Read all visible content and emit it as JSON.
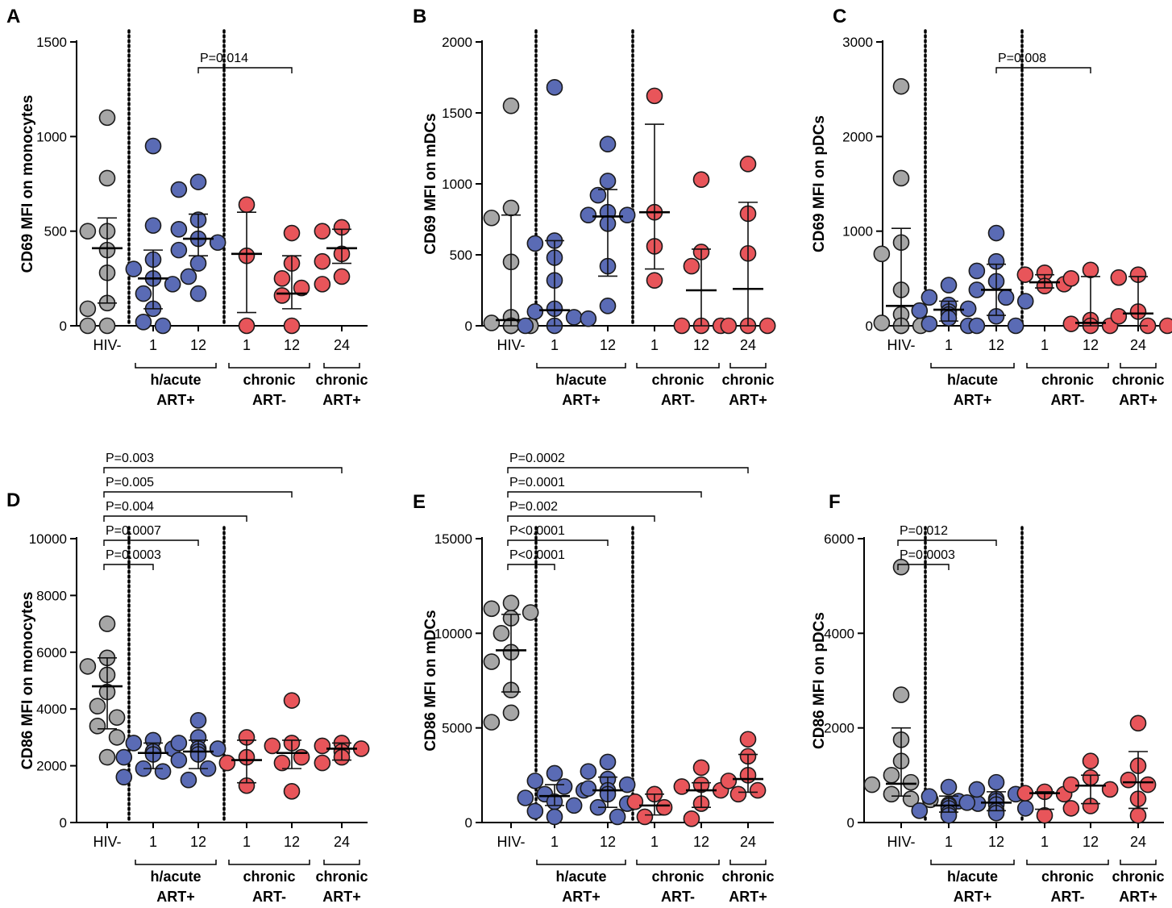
{
  "figure": {
    "colors": {
      "hiv_neg": "#a6a6a6",
      "acute": "#5a6bb5",
      "chronic": "#e8555a",
      "stroke": "#1a1a1a"
    },
    "categories": [
      "HIV-",
      "1",
      "12",
      "1",
      "12",
      "24"
    ],
    "groups": [
      {
        "line1": "h/acute",
        "line2": "ART+",
        "span": [
          1,
          2
        ]
      },
      {
        "line1": "chronic",
        "line2": "ART-",
        "span": [
          3,
          4
        ]
      },
      {
        "line1": "chronic",
        "line2": "ART+",
        "span": [
          5,
          5
        ]
      }
    ]
  },
  "chart_data": [
    {
      "letter": "A",
      "type": "scatter",
      "ylabel": "CD69 MFI on monocytes",
      "ylim": [
        0,
        1500
      ],
      "yticks": [
        0,
        500,
        1000,
        1500
      ],
      "yticklabels": [
        "0",
        "500",
        "1000",
        "1500"
      ],
      "series": [
        {
          "name": "HIV-",
          "color_key": "hiv_neg",
          "values": [
            1100,
            780,
            500,
            500,
            400,
            280,
            120,
            90,
            0,
            0
          ],
          "median": 410,
          "iqr": [
            120,
            570
          ]
        },
        {
          "name": "h/acute ART+ 1",
          "color_key": "acute",
          "values": [
            950,
            530,
            350,
            300,
            250,
            220,
            170,
            90,
            20,
            0
          ],
          "median": 250,
          "iqr": [
            90,
            400
          ]
        },
        {
          "name": "h/acute ART+ 12",
          "color_key": "acute",
          "values": [
            760,
            720,
            560,
            510,
            460,
            440,
            400,
            330,
            260,
            170
          ],
          "median": 460,
          "iqr": [
            370,
            590
          ]
        },
        {
          "name": "chronic ART- 1",
          "color_key": "chronic",
          "values": [
            640,
            370,
            0
          ],
          "median": 380,
          "iqr": [
            70,
            600
          ]
        },
        {
          "name": "chronic ART- 12",
          "color_key": "chronic",
          "values": [
            490,
            330,
            250,
            200,
            160,
            0
          ],
          "median": 170,
          "iqr": [
            90,
            370
          ]
        },
        {
          "name": "chronic ART+ 24",
          "color_key": "chronic",
          "values": [
            520,
            500,
            380,
            340,
            260,
            220
          ],
          "median": 410,
          "iqr": [
            330,
            510
          ]
        }
      ],
      "comparisons": [
        {
          "label": "P=0.014",
          "from": 2,
          "to": 4
        }
      ]
    },
    {
      "letter": "B",
      "type": "scatter",
      "ylabel": "CD69 MFI on mDCs",
      "ylim": [
        0,
        2000
      ],
      "yticks": [
        0,
        500,
        1000,
        1500,
        2000
      ],
      "yticklabels": [
        "0",
        "500",
        "1000",
        "1500",
        "2000"
      ],
      "series": [
        {
          "name": "HIV-",
          "color_key": "hiv_neg",
          "values": [
            1550,
            830,
            760,
            450,
            60,
            20,
            0,
            0,
            0,
            0
          ],
          "median": 40,
          "iqr": [
            0,
            780
          ]
        },
        {
          "name": "h/acute ART+ 1",
          "color_key": "acute",
          "values": [
            1680,
            600,
            580,
            480,
            320,
            120,
            100,
            60,
            0,
            0
          ],
          "median": 110,
          "iqr": [
            0,
            600
          ]
        },
        {
          "name": "h/acute ART+ 12",
          "color_key": "acute",
          "values": [
            1280,
            1020,
            920,
            800,
            780,
            780,
            720,
            420,
            140,
            50
          ],
          "median": 770,
          "iqr": [
            350,
            960
          ]
        },
        {
          "name": "chronic ART- 1",
          "color_key": "chronic",
          "values": [
            1620,
            800,
            560,
            320
          ],
          "median": 800,
          "iqr": [
            400,
            1420
          ]
        },
        {
          "name": "chronic ART- 12",
          "color_key": "chronic",
          "values": [
            1030,
            520,
            420,
            0,
            0,
            0
          ],
          "median": 250,
          "iqr": [
            0,
            540
          ]
        },
        {
          "name": "chronic ART+ 24",
          "color_key": "chronic",
          "values": [
            1140,
            790,
            510,
            0,
            0,
            0
          ],
          "median": 260,
          "iqr": [
            0,
            870
          ]
        }
      ],
      "comparisons": []
    },
    {
      "letter": "C",
      "type": "scatter",
      "ylabel": "CD69 MFI on pDCs",
      "ylim": [
        0,
        3000
      ],
      "yticks": [
        0,
        1000,
        2000,
        3000
      ],
      "yticklabels": [
        "0",
        "1000",
        "2000",
        "3000"
      ],
      "series": [
        {
          "name": "HIV-",
          "color_key": "hiv_neg",
          "values": [
            2530,
            1560,
            880,
            760,
            380,
            120,
            30,
            0,
            0,
            0
          ],
          "median": 210,
          "iqr": [
            0,
            1030
          ]
        },
        {
          "name": "h/acute ART+ 1",
          "color_key": "acute",
          "values": [
            430,
            300,
            220,
            180,
            160,
            150,
            120,
            80,
            20,
            0
          ],
          "median": 170,
          "iqr": [
            50,
            260
          ]
        },
        {
          "name": "h/acute ART+ 12",
          "color_key": "acute",
          "values": [
            980,
            680,
            580,
            470,
            380,
            300,
            260,
            100,
            0,
            0
          ],
          "median": 380,
          "iqr": [
            110,
            650
          ]
        },
        {
          "name": "chronic ART- 1",
          "color_key": "chronic",
          "values": [
            560,
            540,
            440,
            420
          ],
          "median": 460,
          "iqr": [
            400,
            540
          ]
        },
        {
          "name": "chronic ART- 12",
          "color_key": "chronic",
          "values": [
            590,
            500,
            60,
            20,
            0,
            0
          ],
          "median": 30,
          "iqr": [
            0,
            520
          ]
        },
        {
          "name": "chronic ART+ 24",
          "color_key": "chronic",
          "values": [
            540,
            510,
            150,
            100,
            0,
            0
          ],
          "median": 130,
          "iqr": [
            0,
            520
          ]
        }
      ],
      "comparisons": [
        {
          "label": "P=0.008",
          "from": 2,
          "to": 4
        }
      ]
    },
    {
      "letter": "D",
      "type": "scatter",
      "ylabel": "CD86 MFI on monocytes",
      "ylim": [
        0,
        10000
      ],
      "yticks": [
        0,
        2000,
        4000,
        6000,
        8000,
        10000
      ],
      "yticklabels": [
        "0",
        "2000",
        "4000",
        "6000",
        "8000",
        "10000"
      ],
      "series": [
        {
          "name": "HIV-",
          "color_key": "hiv_neg",
          "values": [
            7000,
            5800,
            5500,
            5200,
            4600,
            4100,
            3700,
            3400,
            3000,
            2300
          ],
          "median": 4800,
          "iqr": [
            3300,
            5800
          ]
        },
        {
          "name": "h/acute ART+ 1",
          "color_key": "acute",
          "values": [
            2900,
            2800,
            2600,
            2500,
            2500,
            2400,
            2300,
            1900,
            1800,
            1600
          ],
          "median": 2450,
          "iqr": [
            1900,
            2800
          ]
        },
        {
          "name": "h/acute ART+ 12",
          "color_key": "acute",
          "values": [
            3600,
            3000,
            2800,
            2600,
            2600,
            2500,
            2400,
            2200,
            1900,
            1500
          ],
          "median": 2500,
          "iqr": [
            1900,
            2900
          ]
        },
        {
          "name": "chronic ART- 1",
          "color_key": "chronic",
          "values": [
            3000,
            2300,
            2100,
            1300
          ],
          "median": 2200,
          "iqr": [
            1400,
            2900
          ]
        },
        {
          "name": "chronic ART- 12",
          "color_key": "chronic",
          "values": [
            4300,
            2800,
            2700,
            2300,
            2100,
            1100
          ],
          "median": 2450,
          "iqr": [
            1900,
            2900
          ]
        },
        {
          "name": "chronic ART+ 24",
          "color_key": "chronic",
          "values": [
            2800,
            2700,
            2600,
            2500,
            2300,
            2100
          ],
          "median": 2600,
          "iqr": [
            2200,
            2800
          ]
        }
      ],
      "comparisons": [
        {
          "label": "P=0.003",
          "from": 0,
          "to": 5
        },
        {
          "label": "P=0.005",
          "from": 0,
          "to": 4
        },
        {
          "label": "P=0.004",
          "from": 0,
          "to": 3
        },
        {
          "label": "P=0.0007",
          "from": 0,
          "to": 2
        },
        {
          "label": "P=0.0003",
          "from": 0,
          "to": 1
        }
      ]
    },
    {
      "letter": "E",
      "type": "scatter",
      "ylabel": "CD86 MFI on mDCs",
      "ylim": [
        0,
        15000
      ],
      "yticks": [
        0,
        5000,
        10000,
        15000
      ],
      "yticklabels": [
        "0",
        "5000",
        "10000",
        "15000"
      ],
      "series": [
        {
          "name": "HIV-",
          "color_key": "hiv_neg",
          "values": [
            11600,
            11300,
            11100,
            10800,
            10000,
            9000,
            8500,
            7000,
            5800,
            5300
          ],
          "median": 9100,
          "iqr": [
            6900,
            11000
          ]
        },
        {
          "name": "h/acute ART+ 1",
          "color_key": "acute",
          "values": [
            2600,
            2200,
            1900,
            1700,
            1500,
            1300,
            1100,
            900,
            600,
            300
          ],
          "median": 1400,
          "iqr": [
            900,
            2000
          ]
        },
        {
          "name": "h/acute ART+ 12",
          "color_key": "acute",
          "values": [
            3200,
            2700,
            2300,
            2000,
            1800,
            1700,
            1500,
            1000,
            800,
            300
          ],
          "median": 1700,
          "iqr": [
            800,
            2400
          ]
        },
        {
          "name": "chronic ART- 1",
          "color_key": "chronic",
          "values": [
            1500,
            1100,
            800,
            300
          ],
          "median": 900,
          "iqr": [
            400,
            1500
          ]
        },
        {
          "name": "chronic ART- 12",
          "color_key": "chronic",
          "values": [
            2900,
            2000,
            1900,
            1700,
            1000,
            200
          ],
          "median": 1700,
          "iqr": [
            800,
            2100
          ]
        },
        {
          "name": "chronic ART+ 24",
          "color_key": "chronic",
          "values": [
            4400,
            3500,
            2500,
            2200,
            1700,
            1500
          ],
          "median": 2300,
          "iqr": [
            1600,
            3600
          ]
        }
      ],
      "comparisons": [
        {
          "label": "P=0.0002",
          "from": 0,
          "to": 5
        },
        {
          "label": "P=0.0001",
          "from": 0,
          "to": 4
        },
        {
          "label": "P=0.002",
          "from": 0,
          "to": 3
        },
        {
          "label": "P<0.0001",
          "from": 0,
          "to": 2
        },
        {
          "label": "P<0.0001",
          "from": 0,
          "to": 1
        }
      ]
    },
    {
      "letter": "F",
      "type": "scatter",
      "ylabel": "CD86 MFI on pDCs",
      "ylim": [
        0,
        6000
      ],
      "yticks": [
        0,
        2000,
        4000,
        6000
      ],
      "yticklabels": [
        "0",
        "2000",
        "4000",
        "6000"
      ],
      "series": [
        {
          "name": "HIV-",
          "color_key": "hiv_neg",
          "values": [
            5400,
            2700,
            1750,
            1300,
            1000,
            850,
            800,
            600,
            500,
            480
          ],
          "median": 820,
          "iqr": [
            560,
            2000
          ]
        },
        {
          "name": "h/acute ART+ 1",
          "color_key": "acute",
          "values": [
            750,
            550,
            450,
            400,
            380,
            350,
            300,
            250,
            200,
            150
          ],
          "median": 360,
          "iqr": [
            220,
            560
          ]
        },
        {
          "name": "h/acute ART+ 12",
          "color_key": "acute",
          "values": [
            850,
            700,
            600,
            500,
            450,
            420,
            380,
            300,
            250,
            200
          ],
          "median": 420,
          "iqr": [
            250,
            650
          ]
        },
        {
          "name": "chronic ART- 1",
          "color_key": "chronic",
          "values": [
            650,
            620,
            600,
            150
          ],
          "median": 620,
          "iqr": [
            280,
            650
          ]
        },
        {
          "name": "chronic ART- 12",
          "color_key": "chronic",
          "values": [
            1300,
            950,
            800,
            700,
            350,
            300
          ],
          "median": 780,
          "iqr": [
            400,
            1000
          ]
        },
        {
          "name": "chronic ART+ 24",
          "color_key": "chronic",
          "values": [
            2100,
            1200,
            900,
            800,
            500,
            150
          ],
          "median": 850,
          "iqr": [
            300,
            1500
          ]
        }
      ],
      "comparisons": [
        {
          "label": "P=0.012",
          "from": 0,
          "to": 2
        },
        {
          "label": "P=0.0003",
          "from": 0,
          "to": 1
        }
      ]
    }
  ]
}
